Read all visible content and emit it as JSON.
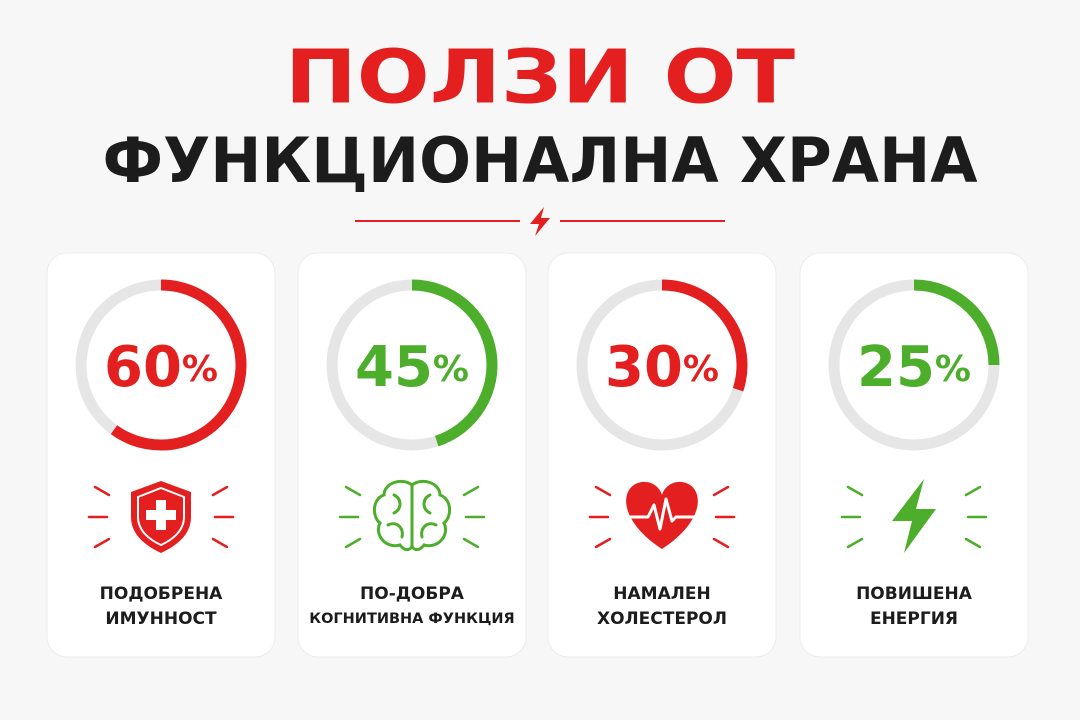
{
  "header": {
    "title": [
      "ПОЛЗИ ОТ",
      "ФУНКЦИОНАЛНА ХРАНА"
    ]
  },
  "chart_data": [
    {
      "type": "gauge",
      "value": 60,
      "value_label": "60%",
      "ylim": [
        0,
        100
      ],
      "color": "#e3201f",
      "label": [
        "ПОДОБРЕНА",
        "ИМУННОСТ"
      ]
    },
    {
      "type": "gauge",
      "value": 45,
      "value_label": "45%",
      "ylim": [
        0,
        100
      ],
      "color": "#4cae2a",
      "label": [
        "ПО-ДОБРА",
        "КОГНИТИВНА ФУНКЦИЯ"
      ]
    },
    {
      "type": "gauge",
      "value": 30,
      "value_label": "30%",
      "ylim": [
        0,
        100
      ],
      "color": "#e3201f",
      "label": [
        "НАМАЛЕН",
        "ХОЛЕСТЕРОЛ"
      ]
    },
    {
      "type": "gauge",
      "value": 25,
      "value_label": "25%",
      "ylim": [
        0,
        100
      ],
      "color": "#4cae2a",
      "label": [
        "ПОВИШЕНА",
        "ЕНЕРГИЯ"
      ]
    }
  ]
}
